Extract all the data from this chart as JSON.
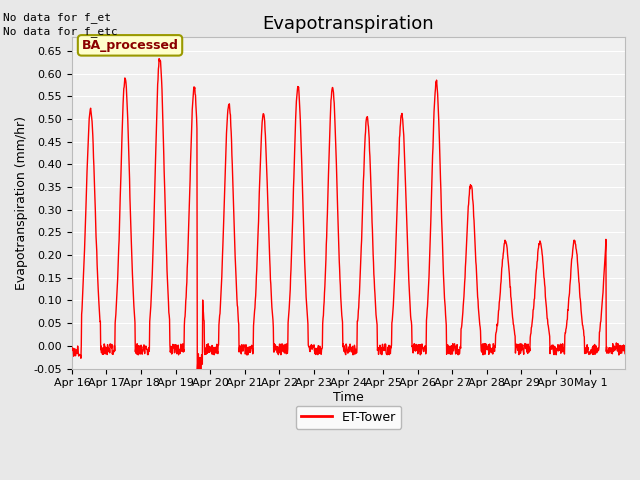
{
  "title": "Evapotranspiration",
  "xlabel": "Time",
  "ylabel": "Evapotranspiration (mm/hr)",
  "ylim": [
    -0.05,
    0.68
  ],
  "yticks": [
    -0.05,
    0.0,
    0.05,
    0.1,
    0.15,
    0.2,
    0.25,
    0.3,
    0.35,
    0.4,
    0.45,
    0.5,
    0.55,
    0.6,
    0.65
  ],
  "line_color": "#ff0000",
  "line_width": 1.0,
  "bg_color": "#e8e8e8",
  "plot_bg_color": "#f0f0f0",
  "legend_label": "ET-Tower",
  "legend_marker_color": "#ff0000",
  "text_no_data1": "No data for f_et",
  "text_no_data2": "No data for f_etc",
  "box_label": "BA_processed",
  "box_facecolor": "#ffffcc",
  "box_edgecolor": "#999900",
  "x_tick_labels": [
    "Apr 16",
    "Apr 17",
    "Apr 18",
    "Apr 19",
    "Apr 20",
    "Apr 21",
    "Apr 22",
    "Apr 23",
    "Apr 24",
    "Apr 25",
    "Apr 26",
    "Apr 27",
    "Apr 28",
    "Apr 29",
    "Apr 30",
    "May 1"
  ],
  "daily_peaks": [
    0.52,
    0.59,
    0.635,
    0.57,
    0.535,
    0.51,
    0.57,
    0.57,
    0.505,
    0.51,
    0.58,
    0.355,
    0.23,
    0.23,
    0.23,
    0.3
  ],
  "title_fontsize": 13,
  "axis_fontsize": 9,
  "tick_fontsize": 8
}
